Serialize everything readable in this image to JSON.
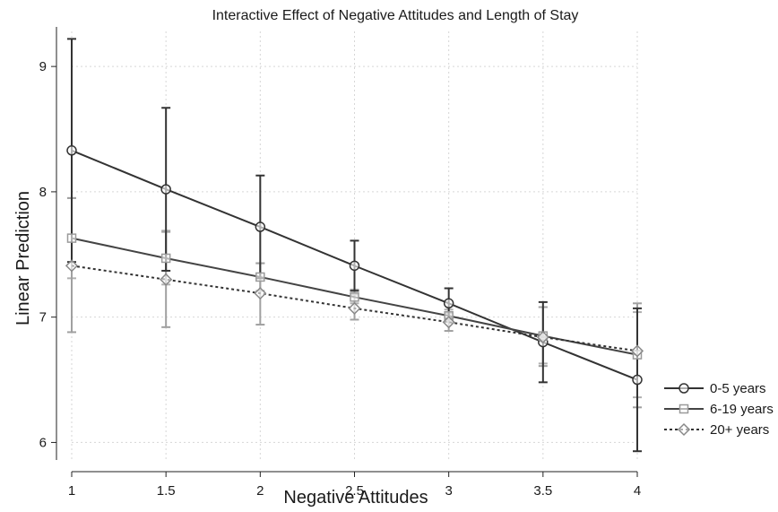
{
  "chart_data": {
    "type": "line",
    "title": "Interactive Effect of Negative Attitudes and Length of Stay",
    "xlabel": "Negative Attitudes",
    "ylabel": "Linear Prediction",
    "x": [
      1,
      1.5,
      2,
      2.5,
      3,
      3.5,
      4
    ],
    "x_tick_labels": [
      "1",
      "1.5",
      "2",
      "2.5",
      "3",
      "3.5",
      "4"
    ],
    "y_ticks": [
      6,
      7,
      8,
      9
    ],
    "y_tick_labels": [
      "6",
      "7",
      "8",
      "9"
    ],
    "xlim": [
      1,
      4
    ],
    "ylim": [
      5.86,
      9.28
    ],
    "grid": true,
    "legend_position": "right",
    "series": [
      {
        "name": "0-5 years",
        "marker": "circle",
        "line_style": "solid",
        "color": "#333333",
        "values": [
          8.33,
          8.02,
          7.72,
          7.41,
          7.11,
          6.8,
          6.5
        ],
        "ci_low": [
          7.44,
          7.37,
          7.31,
          7.21,
          6.99,
          6.48,
          5.93
        ],
        "ci_high": [
          9.22,
          8.67,
          8.13,
          7.61,
          7.23,
          7.12,
          7.07
        ]
      },
      {
        "name": "6-19 years",
        "marker": "square",
        "line_style": "solid",
        "color": "#444444",
        "ci_color": "#b0b0b0",
        "values": [
          7.63,
          7.47,
          7.32,
          7.16,
          7.01,
          6.85,
          6.7
        ],
        "ci_low": [
          7.31,
          7.26,
          7.21,
          7.11,
          6.96,
          6.63,
          6.36
        ],
        "ci_high": [
          7.95,
          7.69,
          7.43,
          7.22,
          7.06,
          7.08,
          7.04
        ]
      },
      {
        "name": "20+ years",
        "marker": "diamond",
        "line_style": "dotted",
        "color": "#333333",
        "ci_color": "#a0a0a0",
        "values": [
          7.41,
          7.3,
          7.19,
          7.07,
          6.96,
          6.84,
          6.73
        ],
        "ci_low": [
          6.88,
          6.92,
          6.94,
          6.98,
          6.89,
          6.61,
          6.28
        ],
        "ci_high": [
          7.95,
          7.68,
          7.43,
          7.18,
          7.03,
          7.08,
          7.11
        ]
      }
    ]
  }
}
